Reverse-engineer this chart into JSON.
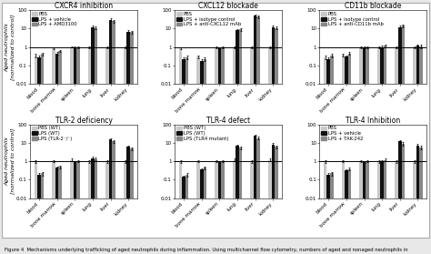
{
  "panels": [
    {
      "title": "CXCR4 inhibition",
      "legend": [
        "PBS",
        "LPS + vehicle",
        "LPS + AMD3100"
      ],
      "colors": [
        "#c8c8c8",
        "#111111",
        "#888888"
      ],
      "categories": [
        "blood",
        "bone marrow",
        "spleen",
        "lung",
        "liver",
        "kidney"
      ],
      "values": [
        [
          0.35,
          0.85,
          1.0,
          1.0,
          1.0,
          1.0
        ],
        [
          0.28,
          0.45,
          0.95,
          12.0,
          30.0,
          7.0
        ],
        [
          0.42,
          0.62,
          1.0,
          11.0,
          25.0,
          6.5
        ]
      ],
      "errors": [
        [
          0.07,
          0.1,
          0.08,
          0.1,
          0.1,
          0.1
        ],
        [
          0.06,
          0.07,
          0.1,
          2.0,
          5.0,
          1.5
        ],
        [
          0.08,
          0.09,
          0.1,
          2.0,
          4.0,
          1.2
        ]
      ]
    },
    {
      "title": "CXCL12 blockade",
      "legend": [
        "PBS",
        "LPS + isotype control",
        "LPS + anti-CXCL12 mAb"
      ],
      "colors": [
        "#c8c8c8",
        "#111111",
        "#888888"
      ],
      "categories": [
        "blood",
        "bone marrow",
        "spleen",
        "lung",
        "liver",
        "kidney"
      ],
      "values": [
        [
          0.85,
          0.3,
          1.0,
          1.0,
          1.0,
          1.0
        ],
        [
          0.22,
          0.18,
          0.9,
          8.0,
          50.0,
          12.0
        ],
        [
          0.28,
          0.22,
          1.0,
          9.0,
          45.0,
          11.0
        ]
      ],
      "errors": [
        [
          0.1,
          0.06,
          0.1,
          0.1,
          0.1,
          0.1
        ],
        [
          0.05,
          0.04,
          0.1,
          1.5,
          8.0,
          2.0
        ],
        [
          0.06,
          0.05,
          0.1,
          1.5,
          7.0,
          2.0
        ]
      ]
    },
    {
      "title": "CD11b blockade",
      "legend": [
        "PBS",
        "LPS + isotype control",
        "LPS + anti-CD11b mAb"
      ],
      "colors": [
        "#c8c8c8",
        "#111111",
        "#888888"
      ],
      "categories": [
        "blood",
        "bone marrow",
        "spleen",
        "lung",
        "liver",
        "kidney"
      ],
      "values": [
        [
          0.28,
          0.38,
          1.0,
          1.0,
          1.0,
          1.0
        ],
        [
          0.22,
          0.3,
          1.0,
          1.0,
          12.0,
          1.2
        ],
        [
          0.35,
          0.45,
          1.0,
          1.2,
          14.0,
          1.1
        ]
      ],
      "errors": [
        [
          0.06,
          0.07,
          0.1,
          0.1,
          0.1,
          0.1
        ],
        [
          0.05,
          0.06,
          0.1,
          0.2,
          2.0,
          0.2
        ],
        [
          0.07,
          0.08,
          0.1,
          0.22,
          2.5,
          0.22
        ]
      ]
    },
    {
      "title": "TLR-2 deficiency",
      "legend": [
        "PBS (WT)",
        "LPS (WT)",
        "LPS (TLR-2⁻/⁻)"
      ],
      "colors": [
        "#c8c8c8",
        "#111111",
        "#888888"
      ],
      "categories": [
        "blood",
        "bone marrow",
        "spleen",
        "lung",
        "liver",
        "kidney"
      ],
      "values": [
        [
          1.0,
          1.0,
          1.2,
          1.0,
          1.0,
          1.0
        ],
        [
          0.18,
          0.45,
          0.9,
          1.5,
          15.0,
          6.0
        ],
        [
          0.22,
          0.5,
          1.0,
          1.3,
          12.0,
          5.0
        ]
      ],
      "errors": [
        [
          0.15,
          0.12,
          0.15,
          0.15,
          0.15,
          0.15
        ],
        [
          0.04,
          0.08,
          0.1,
          0.3,
          2.5,
          1.0
        ],
        [
          0.05,
          0.09,
          0.1,
          0.25,
          2.0,
          0.8
        ]
      ]
    },
    {
      "title": "TLR-4 defect",
      "legend": [
        "PBS (WT)",
        "LPS (WT)",
        "LPS (TLR4 mutant)"
      ],
      "colors": [
        "#c8c8c8",
        "#111111",
        "#888888"
      ],
      "categories": [
        "blood",
        "bone marrow",
        "spleen",
        "lung",
        "liver",
        "kidney"
      ],
      "values": [
        [
          1.0,
          1.0,
          1.0,
          1.2,
          1.0,
          1.2
        ],
        [
          0.14,
          0.35,
          0.9,
          7.0,
          25.0,
          8.0
        ],
        [
          0.18,
          0.45,
          1.0,
          5.5,
          18.0,
          6.0
        ]
      ],
      "errors": [
        [
          0.15,
          0.12,
          0.1,
          0.22,
          0.15,
          0.22
        ],
        [
          0.03,
          0.06,
          0.1,
          1.2,
          4.0,
          1.5
        ],
        [
          0.04,
          0.07,
          0.1,
          1.0,
          3.0,
          1.2
        ]
      ]
    },
    {
      "title": "TLR-4 Inhibition",
      "legend": [
        "PBS",
        "LPS + vehicle",
        "LPS + TAK-242"
      ],
      "colors": [
        "#c8c8c8",
        "#111111",
        "#888888"
      ],
      "categories": [
        "blood",
        "bone marrow",
        "spleen",
        "lung",
        "liver",
        "kidney"
      ],
      "values": [
        [
          1.0,
          1.0,
          1.0,
          1.0,
          1.0,
          1.0
        ],
        [
          0.18,
          0.32,
          0.9,
          1.0,
          12.0,
          7.0
        ],
        [
          0.22,
          0.38,
          1.0,
          1.2,
          9.0,
          5.5
        ]
      ],
      "errors": [
        [
          0.15,
          0.12,
          0.1,
          0.15,
          0.15,
          0.15
        ],
        [
          0.04,
          0.06,
          0.1,
          0.2,
          2.0,
          1.5
        ],
        [
          0.05,
          0.07,
          0.1,
          0.22,
          1.8,
          1.2
        ]
      ]
    }
  ],
  "ylabel": "Aged neutrophils\n[normalized to control]",
  "ylim": [
    0.01,
    100
  ],
  "yticks": [
    0.01,
    0.1,
    1,
    10,
    100
  ],
  "figure_caption": "Figure 4  Mechanisms underlying trafficking of aged neutrophils during inflammation. Using multichannel flow cytometry, numbers of aged and nonaged neutrophils in",
  "outer_bg": "#e8e8e8",
  "inner_bg": "#ffffff",
  "hline_y": 1.0,
  "bar_width": 0.18,
  "fontsize_title": 5.5,
  "fontsize_tick": 4.0,
  "fontsize_legend": 3.8,
  "fontsize_ylabel": 4.5,
  "fontsize_caption": 3.8
}
